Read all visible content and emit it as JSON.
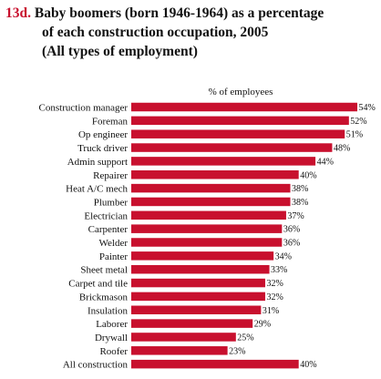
{
  "figure_number": "13d.",
  "title_line1": "Baby boomers (born 1946-1964) as a percentage",
  "title_line2": "of each construction occupation, 2005",
  "subtitle": "(All types of employment)",
  "colors": {
    "bar": "#c8102e",
    "figure_number": "#c8102e"
  },
  "chart_data": {
    "type": "bar",
    "orientation": "horizontal",
    "xlabel": "% of employees",
    "xlim": [
      0,
      54
    ],
    "value_suffix": "%",
    "grid": false,
    "categories": [
      "Construction manager",
      "Foreman",
      "Op engineer",
      "Truck driver",
      "Admin support",
      "Repairer",
      "Heat A/C mech",
      "Plumber",
      "Electrician",
      "Carpenter",
      "Welder",
      "Painter",
      "Sheet metal",
      "Carpet and tile",
      "Brickmason",
      "Insulation",
      "Laborer",
      "Drywall",
      "Roofer",
      "All construction"
    ],
    "values": [
      54,
      52,
      51,
      48,
      44,
      40,
      38,
      38,
      37,
      36,
      36,
      34,
      33,
      32,
      32,
      31,
      29,
      25,
      23,
      40
    ],
    "value_labels": [
      "54%",
      "52%",
      "51%",
      "48%",
      "44%",
      "40%",
      "38%",
      "38%",
      "37%",
      "36%",
      "36%",
      "34%",
      "33%",
      "32%",
      "32%",
      "31%",
      "29%",
      "25%",
      "23%",
      "40%"
    ]
  }
}
